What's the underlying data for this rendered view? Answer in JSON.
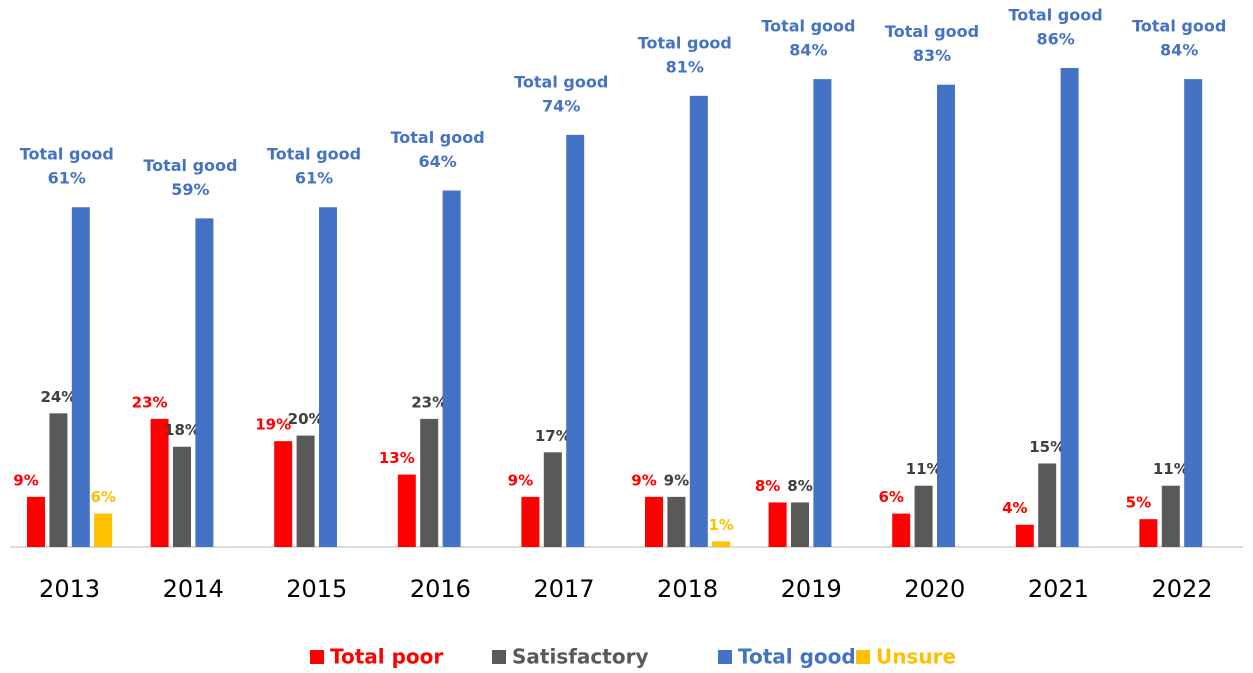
{
  "chart_data": {
    "type": "bar",
    "categories": [
      "2013",
      "2014",
      "2015",
      "2016",
      "2017",
      "2018",
      "2019",
      "2020",
      "2021",
      "2022"
    ],
    "series": [
      {
        "name": "Total poor",
        "color": "#ff0000",
        "values": [
          9,
          23,
          19,
          13,
          9,
          9,
          8,
          6,
          4,
          5
        ],
        "value_labels": [
          "9%",
          "23%",
          "19%",
          "13%",
          "9%",
          "9%",
          "8%",
          "6%",
          "4%",
          "5%"
        ]
      },
      {
        "name": "Satisfactory",
        "color": "#595959",
        "values": [
          24,
          18,
          20,
          23,
          17,
          9,
          8,
          11,
          15,
          11
        ],
        "value_labels": [
          "24%",
          "18%",
          "20%",
          "23%",
          "17%",
          "9%",
          "8%",
          "11%",
          "15%",
          "11%"
        ]
      },
      {
        "name": "Total good",
        "color": "#4472c4",
        "values": [
          61,
          59,
          61,
          64,
          74,
          81,
          84,
          83,
          86,
          84
        ],
        "value_labels": [
          "61%",
          "59%",
          "61%",
          "64%",
          "74%",
          "81%",
          "84%",
          "83%",
          "86%",
          "84%"
        ]
      },
      {
        "name": "Unsure",
        "color": "#ffc000",
        "values": [
          6,
          null,
          null,
          null,
          null,
          1,
          null,
          null,
          null,
          null
        ],
        "value_labels": [
          "6%",
          null,
          null,
          null,
          null,
          "1%",
          null,
          null,
          null,
          null
        ]
      }
    ],
    "legend": "bottom"
  }
}
